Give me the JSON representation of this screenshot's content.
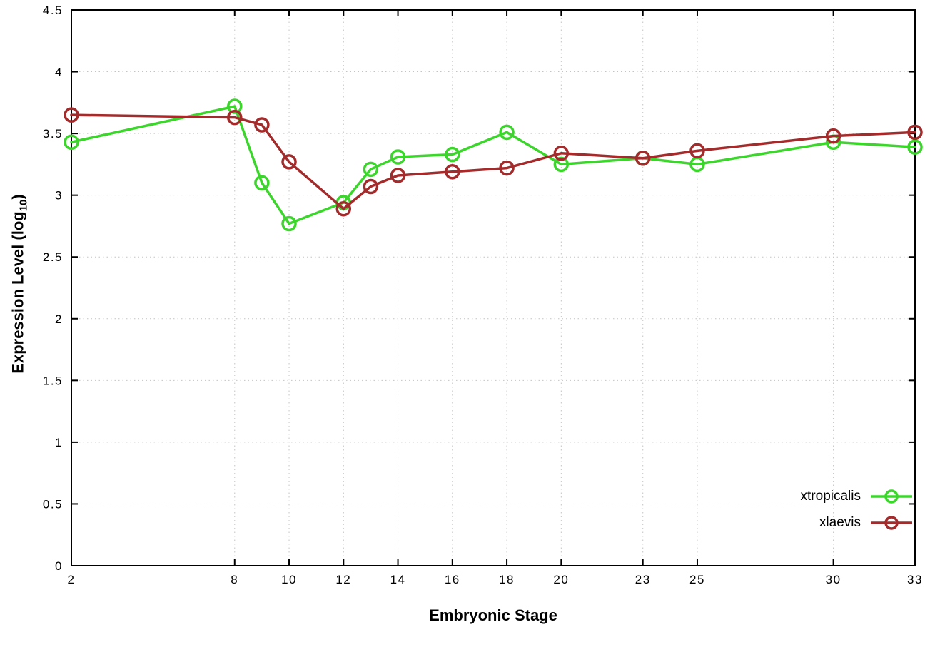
{
  "chart_data": {
    "type": "line",
    "x": [
      2,
      8,
      9,
      10,
      12,
      13,
      14,
      16,
      18,
      20,
      23,
      25,
      30,
      33
    ],
    "series": [
      {
        "name": "xtropicalis",
        "color": "#3bd52b",
        "values": [
          3.43,
          3.72,
          3.1,
          2.77,
          2.94,
          3.21,
          3.31,
          3.33,
          3.51,
          3.25,
          3.3,
          3.25,
          3.43,
          3.39
        ]
      },
      {
        "name": "xlaevis",
        "color": "#a32b2b",
        "values": [
          3.65,
          3.63,
          3.57,
          3.27,
          2.89,
          3.07,
          3.16,
          3.19,
          3.22,
          3.34,
          3.3,
          3.36,
          3.48,
          3.51
        ]
      }
    ],
    "xlabel": "Embryonic Stage",
    "ylabel": "Expression Level (log10)",
    "ylabel_parts": {
      "main": "Expression Level (log",
      "sub": "10",
      "end": ")"
    },
    "xlim": [
      2,
      33
    ],
    "ylim": [
      0,
      4.5
    ],
    "xticks": [
      2,
      8,
      10,
      12,
      14,
      16,
      18,
      20,
      23,
      25,
      30,
      33
    ],
    "yticks": [
      0,
      0.5,
      1,
      1.5,
      2,
      2.5,
      3,
      3.5,
      4,
      4.5
    ],
    "grid": true,
    "legend_position": "bottom-right",
    "grid_color": "#c4c4c4",
    "axis_color": "#000000",
    "background": "#ffffff"
  }
}
